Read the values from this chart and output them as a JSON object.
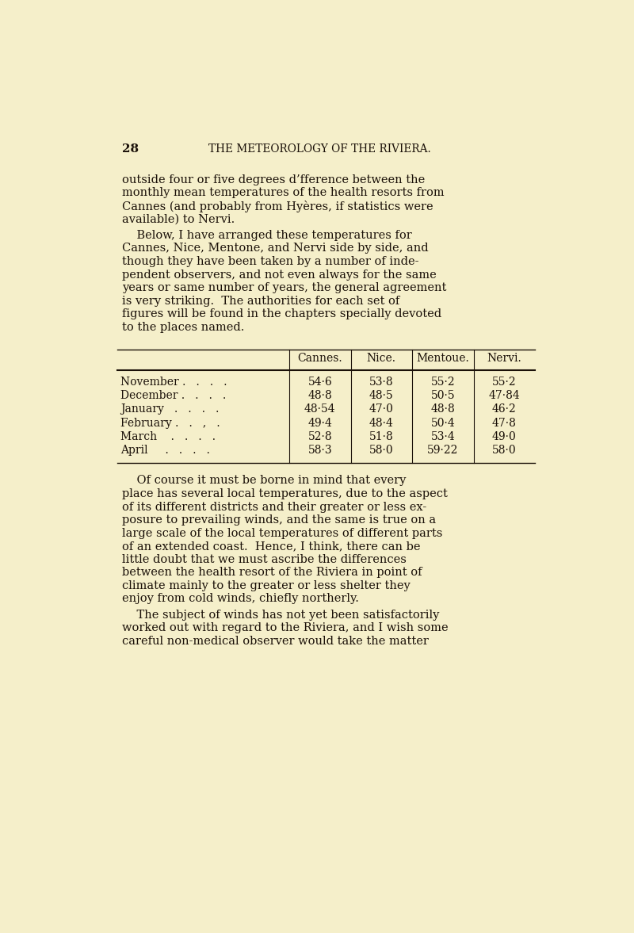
{
  "background_color": "#f5efca",
  "page_number": "28",
  "header": "THE METEOROLOGY OF THE RIVIERA.",
  "text_color": "#1a1008",
  "font_size_header": 9.8,
  "font_size_body": 10.5,
  "font_size_table": 10.0,
  "font_size_page_num": 11.0,
  "paragraph1_lines": [
    "outside four or five degrees d’fference between the",
    "monthly mean temperatures of the health resorts from",
    "Cannes (and probably from Hyères, if statistics were",
    "available) to Nervi."
  ],
  "paragraph2_lines": [
    "    Below, I have arranged these temperatures for",
    "Cannes, Nice, Mentone, and Nervi side by side, and",
    "though they have been taken by a number of inde-",
    "pendent observers, and not even always for the same",
    "years or same number of years, the general agreement",
    "is very striking.  The authorities for each set of",
    "figures will be found in the chapters specially devoted",
    "to the places named."
  ],
  "table_headers": [
    "",
    "Cannes.",
    "Nice.",
    "Mentoue.",
    "Nervi."
  ],
  "table_rows": [
    [
      "November .   .   .   .",
      "54·6",
      "53·8",
      "55·2",
      "55·2"
    ],
    [
      "December .   .   .   .",
      "48·8",
      "48·5",
      "50·5",
      "47·84"
    ],
    [
      "January   .   .   .   .",
      "48·54",
      "47·0",
      "48·8",
      "46·2"
    ],
    [
      "February .   .   ,   .",
      "49·4",
      "48·4",
      "50·4",
      "47·8"
    ],
    [
      "March    .   .   .   .",
      "52·8",
      "51·8",
      "53·4",
      "49·0"
    ],
    [
      "April     .   .   .   .",
      "58·3",
      "58·0",
      "59·22",
      "58·0"
    ]
  ],
  "paragraph3_lines": [
    "    Of course it must be borne in mind that every",
    "place has several local temperatures, due to the aspect",
    "of its different districts and their greater or less ex-",
    "posure to prevailing winds, and the same is true on a",
    "large scale of the local temperatures of different parts",
    "of an extended coast.  Hence, I think, there can be",
    "little doubt that we must ascribe the differences",
    "between the health resort of the Riviera in point of",
    "climate mainly to the greater or less shelter they",
    "enjoy from cold winds, chiefly northerly."
  ],
  "paragraph4_lines": [
    "    The subject of winds has not yet been satisfactorily",
    "worked out with regard to the Riviera, and I wish some",
    "careful non-medical observer would take the matter"
  ]
}
